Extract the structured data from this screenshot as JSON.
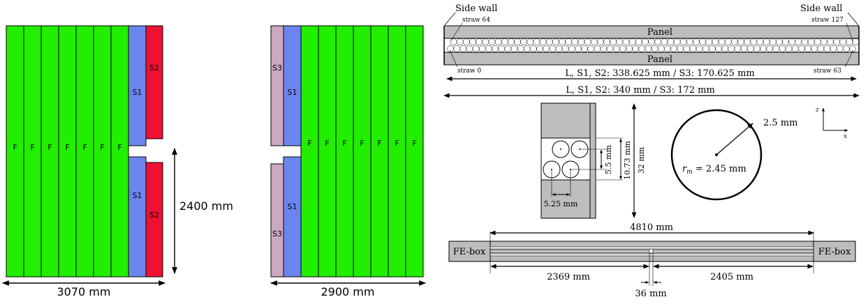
{
  "colors": {
    "full_module": "#22ee00",
    "short_module_s1": "#6a86ee",
    "short_module_s2": "#ee1133",
    "short_module_s3": "#cca7c0",
    "panel_gray": "#bdbdbd",
    "outline": "#000000"
  },
  "left_layout": {
    "module_label_full": "F",
    "module_label_s1": "S1",
    "module_label_s2": "S2",
    "height_dim": "2400 mm",
    "width_dim": "3070 mm"
  },
  "middle_layout": {
    "module_label_full": "F",
    "module_label_s1": "S1",
    "module_label_s3": "S3",
    "width_dim": "2900 mm"
  },
  "module_cross_section": {
    "side_wall_left": "Side wall",
    "side_wall_right": "Side wall",
    "straw_top_left": "straw 64",
    "straw_top_right": "straw 127",
    "straw_bottom_left": "straw 0",
    "straw_bottom_right": "straw 63",
    "panel_top": "Panel",
    "panel_bottom": "Panel",
    "inner_length": "L, S1, S2: 338.625 mm / S3: 170.625 mm",
    "outer_length": "L, S1, S2: 340 mm / S3: 172 mm"
  },
  "detail_section": {
    "pitch_horizontal": "5.25 mm",
    "pitch_vertical": "5.5 mm",
    "layer_height": "10.73 mm",
    "total_height": "32 mm"
  },
  "straw_circle": {
    "outer_radius": "2.5 mm",
    "radius_label": "r",
    "radius_subscript": "m",
    "radius_value": " = 2.45 mm",
    "axis_z": "z",
    "axis_x": "x"
  },
  "module_length": {
    "fe_box_left": "FE-box",
    "fe_box_right": "FE-box",
    "total_length": "4810 mm",
    "left_segment": "2369 mm",
    "right_segment": "2405 mm",
    "gap": "36 mm"
  }
}
